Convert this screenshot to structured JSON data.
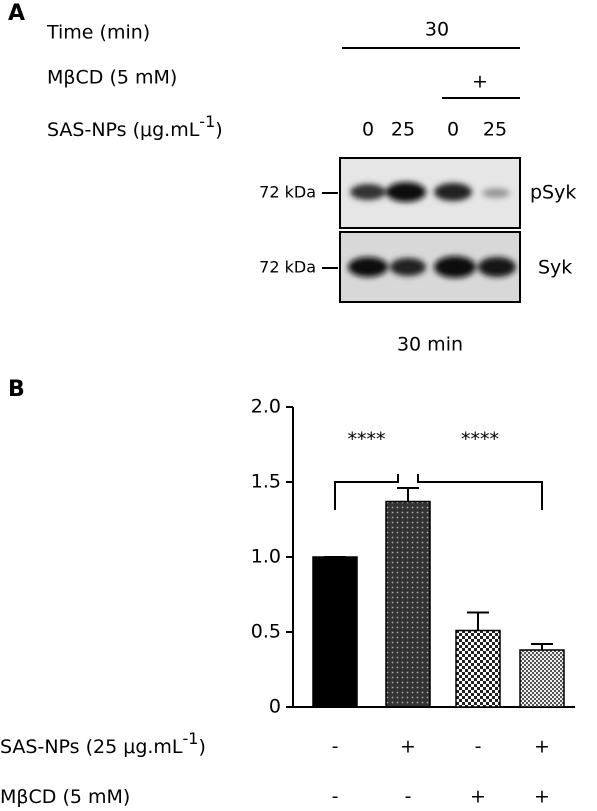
{
  "panel_a": {
    "label": "A",
    "time_label": "Time (min)",
    "time_value": "30",
    "mbcd_label": "MβCD (5 mM)",
    "mbcd_sign": "+",
    "sas_label": "SAS-NPs (μg.mL",
    "sas_sup": "-1",
    "sas_end": ")",
    "lanes": [
      "0",
      "25",
      "0",
      "25"
    ],
    "blots": [
      {
        "marker": "72 kDa",
        "name": "pSyk"
      },
      {
        "marker": "72 kDa",
        "name": "Syk"
      }
    ],
    "caption": "30 min"
  },
  "chart_data": {
    "type": "bar",
    "panel_label": "B",
    "categories": [
      null,
      null,
      null,
      null
    ],
    "values": [
      1.0,
      1.37,
      0.51,
      0.38
    ],
    "errors": [
      0,
      0.09,
      0.12,
      0.04
    ],
    "patterns": [
      "solid",
      "dots",
      "checker",
      "fine-checker"
    ],
    "ylim": [
      0,
      2.0
    ],
    "yticks": [
      0,
      0.5,
      {
        "value": 1.0,
        "label": "1.0"
      },
      1.5,
      {
        "value": 2.0,
        "label": "2.0"
      }
    ],
    "conditions": [
      {
        "name": "SAS-NPs (25 μg.mL",
        "name_sup": "-1",
        "name_end": ")",
        "signs": [
          "-",
          "+",
          "-",
          "+"
        ]
      },
      {
        "name": "MβCD (5 mM)",
        "signs": [
          "-",
          "-",
          "+",
          "+"
        ]
      }
    ],
    "comparisons": [
      {
        "from": 0,
        "to": 1,
        "label": "****"
      },
      {
        "from": 1,
        "to": 3,
        "label": "****"
      }
    ]
  }
}
